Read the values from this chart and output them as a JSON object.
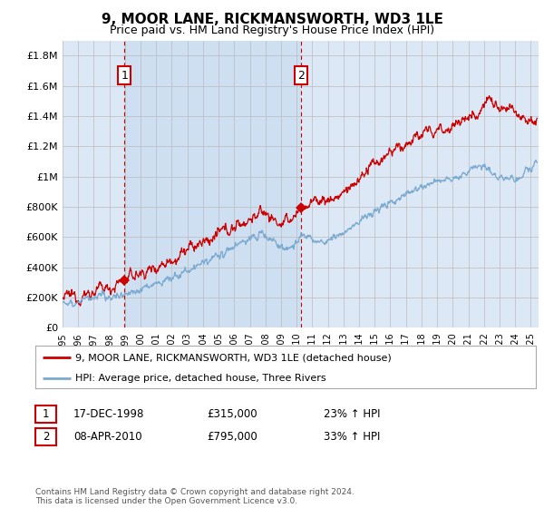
{
  "title": "9, MOOR LANE, RICKMANSWORTH, WD3 1LE",
  "subtitle": "Price paid vs. HM Land Registry's House Price Index (HPI)",
  "ylabel_ticks": [
    "£0",
    "£200K",
    "£400K",
    "£600K",
    "£800K",
    "£1M",
    "£1.2M",
    "£1.4M",
    "£1.6M",
    "£1.8M"
  ],
  "ylabel_values": [
    0,
    200000,
    400000,
    600000,
    800000,
    1000000,
    1200000,
    1400000,
    1600000,
    1800000
  ],
  "ylim": [
    0,
    1900000
  ],
  "xlim_start": 1995.0,
  "xlim_end": 2025.5,
  "sale1_year": 1998.96,
  "sale1_price": 315000,
  "sale2_year": 2010.27,
  "sale2_price": 795000,
  "plot_bg": "#dce8f5",
  "shade_color": "#cddff0",
  "legend_label_red": "9, MOOR LANE, RICKMANSWORTH, WD3 1LE (detached house)",
  "legend_label_blue": "HPI: Average price, detached house, Three Rivers",
  "red_color": "#cc0000",
  "blue_color": "#7aaad0",
  "grid_color": "#bbbbbb",
  "title_fontsize": 11,
  "subtitle_fontsize": 9,
  "footer_note": "Contains HM Land Registry data © Crown copyright and database right 2024.\nThis data is licensed under the Open Government Licence v3.0."
}
